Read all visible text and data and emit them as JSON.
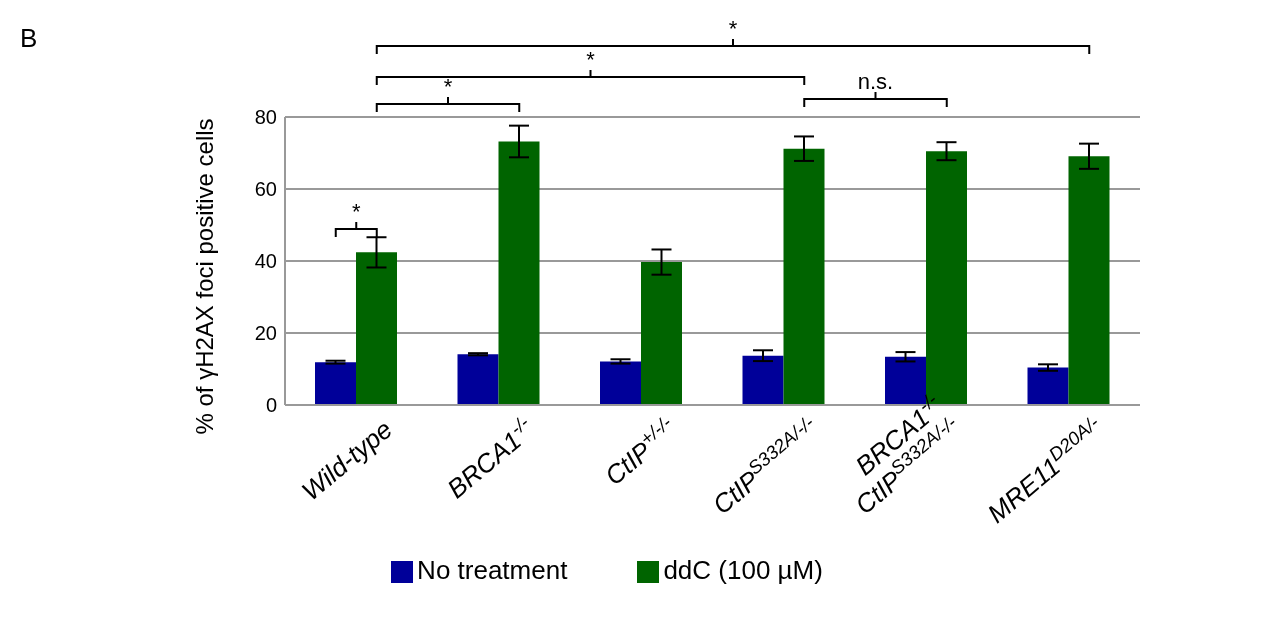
{
  "chart_data": {
    "type": "bar",
    "ylabel": "% of γH2AX foci positive cells",
    "categories": [
      "Wild-type",
      "BRCA1$^{-/-}$",
      "CtIP$^{+/-/-}$",
      "CtIP$^{S332A/-/-}$",
      "BRCA1$^{-/-}$\nCtIP$^{S332A/-/-}$",
      "MRE11$^{D20A/-}$"
    ],
    "series": [
      {
        "name": "No treatment",
        "color": "#000099",
        "values": [
          11.9,
          14.1,
          12.1,
          13.7,
          13.4,
          10.4
        ],
        "errors": [
          0.4,
          0.3,
          0.6,
          1.5,
          1.3,
          0.9
        ]
      },
      {
        "name": "ddC (100 µM)",
        "color": "#006400",
        "values": [
          42.4,
          73.2,
          39.7,
          71.2,
          70.5,
          69.1
        ],
        "errors": [
          4.2,
          4.4,
          3.5,
          3.4,
          2.5,
          3.5
        ]
      }
    ],
    "ylim": [
      0,
      80
    ],
    "yticks": [
      0,
      20,
      40,
      60,
      80
    ],
    "grid": "y",
    "legend": "bottom",
    "annotations": [
      "B",
      "*",
      "*",
      "*",
      "*",
      "n.s."
    ]
  }
}
